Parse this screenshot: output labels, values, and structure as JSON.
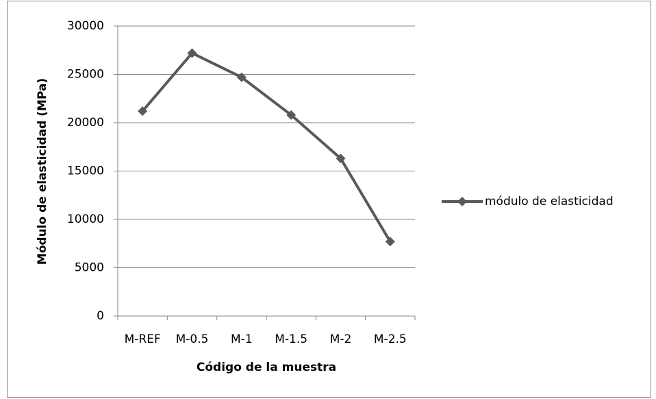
{
  "chart_data": {
    "type": "line",
    "categories": [
      "M-REF",
      "M-0.5",
      "M-1",
      "M-1.5",
      "M-2",
      "M-2.5"
    ],
    "series": [
      {
        "name": "módulo de elasticidad",
        "color": "#595959",
        "values": [
          21200,
          27200,
          24700,
          20800,
          16300,
          7700
        ]
      }
    ],
    "x_label": "Código de la muestra",
    "y_label": "Módulo de elasticidad  (MPa)",
    "ylim": [
      0,
      30000
    ],
    "yticks": [
      0,
      5000,
      10000,
      15000,
      20000,
      25000,
      30000
    ],
    "grid": true,
    "legend": "right"
  }
}
